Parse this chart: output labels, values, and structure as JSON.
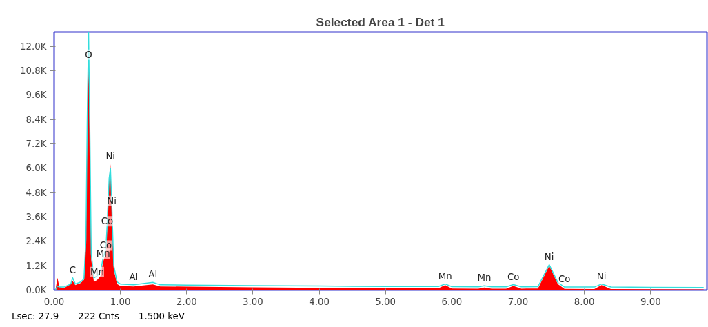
{
  "chart_data": {
    "type": "area",
    "title": "Selected Area 1 - Det 1",
    "x": [
      0.02,
      0.05,
      0.08,
      0.15,
      0.25,
      0.28,
      0.32,
      0.4,
      0.45,
      0.48,
      0.5,
      0.52,
      0.54,
      0.56,
      0.6,
      0.65,
      0.7,
      0.74,
      0.78,
      0.8,
      0.83,
      0.85,
      0.87,
      0.9,
      0.95,
      1.0,
      1.2,
      1.49,
      1.6,
      2.0,
      3.0,
      4.0,
      5.0,
      5.8,
      5.9,
      6.0,
      6.4,
      6.49,
      6.6,
      6.82,
      6.93,
      7.05,
      7.3,
      7.47,
      7.6,
      7.7,
      8.15,
      8.26,
      8.4,
      9.0,
      9.8
    ],
    "series": [
      {
        "color": "#ff0000",
        "values": [
          0,
          600,
          150,
          100,
          300,
          450,
          250,
          350,
          500,
          2200,
          8000,
          11200,
          7000,
          1500,
          400,
          500,
          700,
          1400,
          1800,
          3000,
          5500,
          6200,
          4000,
          1000,
          300,
          200,
          180,
          280,
          180,
          170,
          140,
          110,
          90,
          90,
          250,
          80,
          70,
          130,
          70,
          70,
          200,
          70,
          80,
          1200,
          300,
          60,
          50,
          250,
          50,
          40,
          30
        ]
      },
      {
        "type": "line",
        "color": "#33dddd",
        "values": [
          0,
          200,
          150,
          150,
          300,
          600,
          300,
          400,
          550,
          2500,
          8500,
          12700,
          7500,
          1800,
          600,
          700,
          900,
          1600,
          2000,
          3200,
          5500,
          6000,
          4200,
          1200,
          400,
          300,
          260,
          380,
          260,
          250,
          220,
          200,
          180,
          180,
          300,
          170,
          160,
          210,
          160,
          160,
          270,
          160,
          170,
          1250,
          380,
          150,
          150,
          300,
          150,
          140,
          130
        ]
      }
    ],
    "xlim": [
      0,
      9.85
    ],
    "xticks": [
      {
        "value": 0,
        "label": "0.00"
      },
      {
        "value": 1,
        "label": "1.00"
      },
      {
        "value": 2,
        "label": "2.00"
      },
      {
        "value": 3,
        "label": "3.00"
      },
      {
        "value": 4,
        "label": "4.00"
      },
      {
        "value": 5,
        "label": "5.00"
      },
      {
        "value": 6,
        "label": "6.00"
      },
      {
        "value": 7,
        "label": "7.00"
      },
      {
        "value": 8,
        "label": "8.00"
      },
      {
        "value": 9,
        "label": "9.00"
      }
    ],
    "ylim": [
      0,
      12700
    ],
    "yticks": [
      {
        "value": 0,
        "label": "0.0K"
      },
      {
        "value": 1200,
        "label": "1.2K"
      },
      {
        "value": 2400,
        "label": "2.4K"
      },
      {
        "value": 3600,
        "label": "3.6K"
      },
      {
        "value": 4800,
        "label": "4.8K"
      },
      {
        "value": 6000,
        "label": "6.0K"
      },
      {
        "value": 7200,
        "label": "7.2K"
      },
      {
        "value": 8400,
        "label": "8.4K"
      },
      {
        "value": 9600,
        "label": "9.6K"
      },
      {
        "value": 10800,
        "label": "10.8K"
      },
      {
        "value": 12000,
        "label": "12.0K"
      }
    ],
    "grid": false,
    "annotations": [
      {
        "text": "O",
        "x": 0.52,
        "y": 11200
      },
      {
        "text": "Ni",
        "x": 0.85,
        "y": 6200
      },
      {
        "text": "Ni",
        "x": 0.87,
        "y": 4000
      },
      {
        "text": "Co",
        "x": 0.8,
        "y": 3000
      },
      {
        "text": "Co",
        "x": 0.78,
        "y": 1800
      },
      {
        "text": "Mn",
        "x": 0.74,
        "y": 1400
      },
      {
        "text": "Mn",
        "x": 0.65,
        "y": 500
      },
      {
        "text": "C",
        "x": 0.28,
        "y": 600
      },
      {
        "text": "Al",
        "x": 1.49,
        "y": 380
      },
      {
        "text": "Al",
        "x": 1.2,
        "y": 260
      },
      {
        "text": "Mn",
        "x": 5.9,
        "y": 300
      },
      {
        "text": "Mn",
        "x": 6.49,
        "y": 210
      },
      {
        "text": "Co",
        "x": 6.93,
        "y": 270
      },
      {
        "text": "Ni",
        "x": 7.47,
        "y": 1250
      },
      {
        "text": "Co",
        "x": 7.7,
        "y": 150
      },
      {
        "text": "Ni",
        "x": 8.26,
        "y": 300
      },
      "Lsec: 27.9",
      "222 Cnts",
      "1.500 keV"
    ]
  }
}
